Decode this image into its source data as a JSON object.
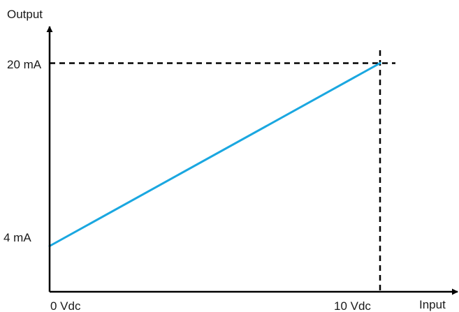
{
  "chart_data": {
    "type": "line",
    "title": "",
    "xlabel": "Input",
    "ylabel": "Output",
    "x_tick_labels": [
      {
        "value": 0,
        "label": "0 Vdc"
      },
      {
        "value": 10,
        "label": "10 Vdc"
      }
    ],
    "y_tick_labels": [
      {
        "value": 4,
        "label": "4 mA"
      },
      {
        "value": 20,
        "label": "20 mA"
      }
    ],
    "xlim": [
      0,
      11
    ],
    "ylim": [
      0,
      23.2
    ],
    "grid": false,
    "series": [
      {
        "x": [
          0,
          10
        ],
        "y": [
          4,
          20
        ],
        "color": "#1aa7e0"
      }
    ],
    "reference_lines": [
      {
        "orientation": "horizontal",
        "value": 20,
        "style": "dashed",
        "color": "#000000"
      },
      {
        "orientation": "vertical",
        "value": 10,
        "style": "dashed",
        "color": "#000000"
      }
    ],
    "axis_color": "#000000"
  }
}
